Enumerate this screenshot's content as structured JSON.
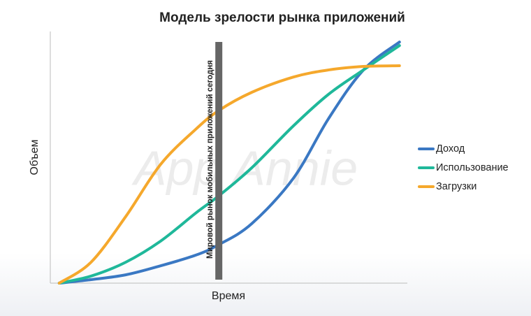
{
  "chart_data": {
    "type": "line",
    "title": "Модель зрелости рынка приложений",
    "x_label": "Время",
    "y_label": "Объем",
    "watermark": "App Annie",
    "annotation": {
      "text": "Мировой рынок мобильных приложений сегодня",
      "x": 47.2
    },
    "x": [
      2.5,
      11.4,
      21.1,
      30.9,
      40.7,
      47.2,
      56.4,
      68.1,
      77.9,
      87.7,
      97.8
    ],
    "xlim": [
      0,
      100
    ],
    "ylim": [
      0,
      100
    ],
    "series": [
      {
        "name": "Доход",
        "color": "#3a78c3",
        "values": [
          0,
          1.4,
          3.3,
          6.9,
          11.1,
          15.3,
          23.6,
          41.7,
          65.3,
          84.7,
          95.8
        ]
      },
      {
        "name": "Использование",
        "color": "#1fb89a",
        "values": [
          0,
          2.8,
          8.3,
          16.7,
          27.8,
          34.7,
          45.8,
          62.5,
          75,
          84.7,
          94.4
        ]
      },
      {
        "name": "Загрузки",
        "color": "#f5a82c",
        "values": [
          0,
          8.3,
          26.4,
          47.2,
          61.1,
          68.6,
          75.8,
          81.9,
          84.7,
          86.1,
          86.4
        ]
      }
    ],
    "legend": "right"
  }
}
